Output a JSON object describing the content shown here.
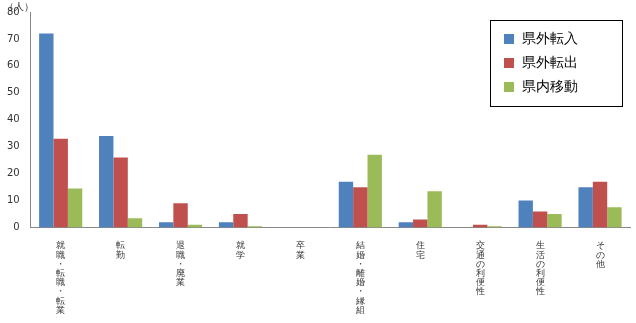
{
  "chart_data": {
    "type": "bar",
    "y_label": "（人）",
    "categories": [
      "就職・転職・転業",
      "転勤",
      "退職・廃業",
      "就学",
      "卒業",
      "結婚・離婚・縁組",
      "住宅",
      "交通の利便性",
      "生活の利便性",
      "その他"
    ],
    "series": [
      {
        "name": "県外転入",
        "color": "#4f81bd",
        "values": [
          72,
          34,
          2,
          2,
          0,
          17,
          2,
          0,
          10,
          15
        ]
      },
      {
        "name": "県外転出",
        "color": "#c0504d",
        "values": [
          33,
          26,
          9,
          5,
          0,
          15,
          3,
          1,
          6,
          17
        ]
      },
      {
        "name": "県内移動",
        "color": "#9bbb59",
        "values": [
          14.5,
          3.5,
          1,
          0.5,
          0,
          27,
          13.5,
          0.5,
          5,
          7.5
        ]
      }
    ],
    "ylim": [
      0,
      80
    ],
    "yticks": [
      0,
      10,
      20,
      30,
      40,
      50,
      60,
      70,
      80
    ],
    "grid": false,
    "legend": "upper right"
  }
}
